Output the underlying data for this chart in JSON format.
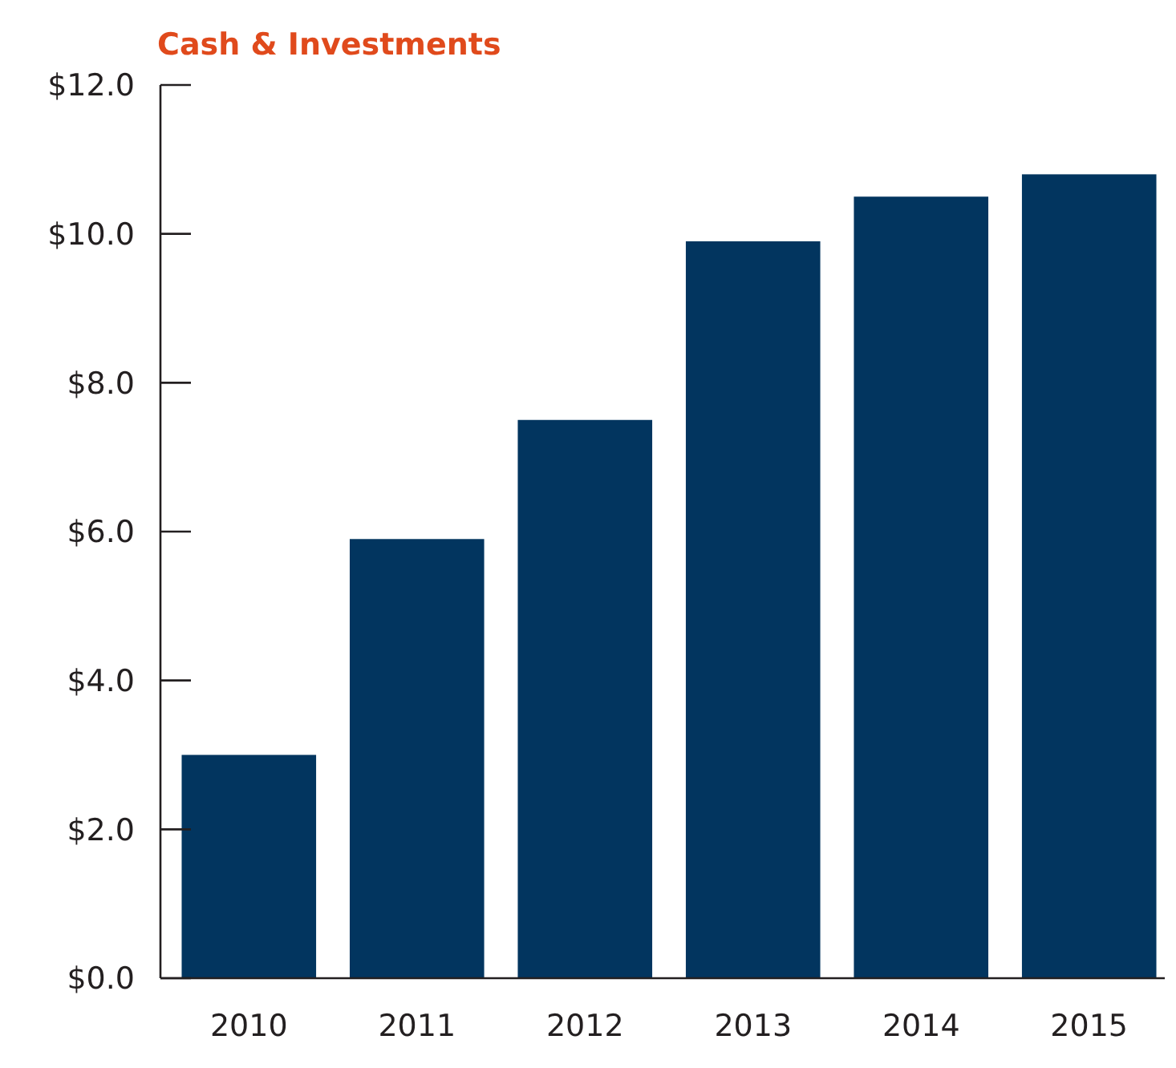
{
  "chart_data": {
    "type": "bar",
    "title": "Cash & Investments",
    "categories": [
      "2010",
      "2011",
      "2012",
      "2013",
      "2014",
      "2015"
    ],
    "values": [
      3.0,
      5.9,
      7.5,
      9.9,
      10.5,
      10.8
    ],
    "color": "#02355f",
    "ylim": [
      0,
      12
    ],
    "yticks": [
      {
        "value": 0,
        "label": "$0.0"
      },
      {
        "value": 2,
        "label": "$2.0"
      },
      {
        "value": 4,
        "label": "$4.0"
      },
      {
        "value": 6,
        "label": "$6.0"
      },
      {
        "value": 8,
        "label": "$8.0"
      },
      {
        "value": 10,
        "label": "$10.0"
      },
      {
        "value": 12,
        "label": "$12.0"
      }
    ],
    "grid": false
  }
}
